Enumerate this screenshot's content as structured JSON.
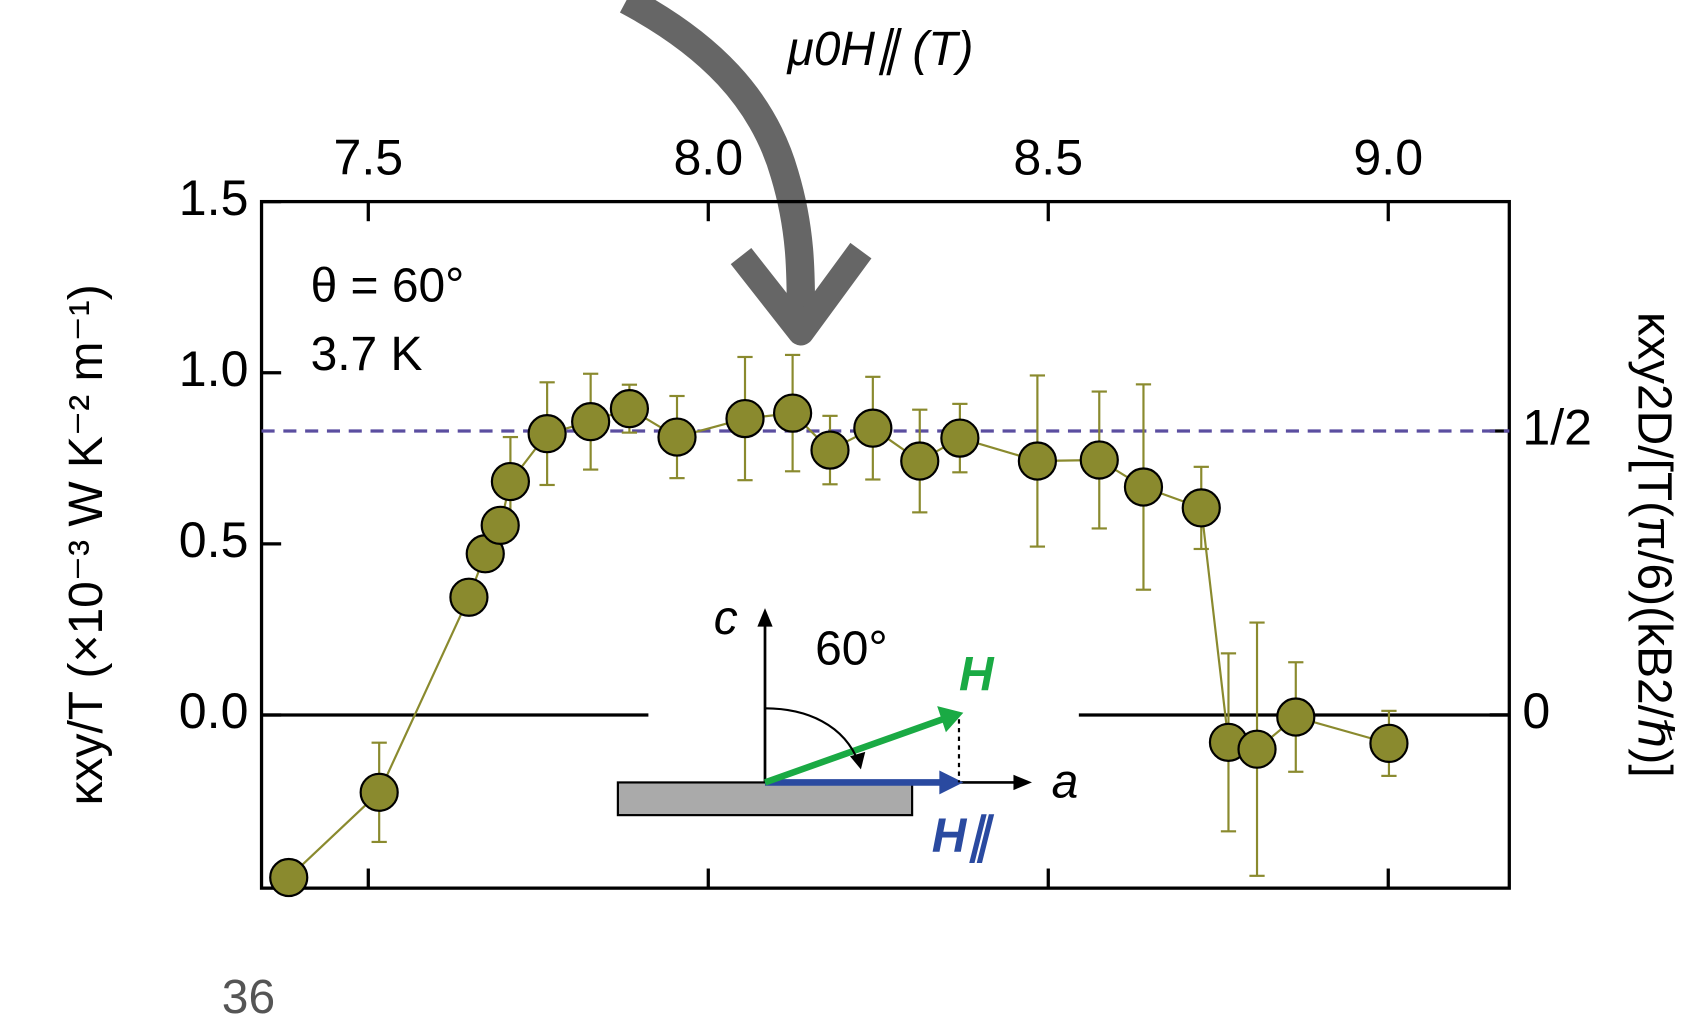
{
  "chart_data": {
    "type": "scatter",
    "x_label": "μ0H∥ (T)",
    "y_label": "κxy/T (×10⁻³ W K⁻² m⁻¹)",
    "y2_label": "κxy2D/[T(π/6)(kB2/ℏ)]",
    "annotations": [
      "θ = 60°",
      "3.7 K"
    ],
    "inset_labels": [
      "c",
      "60°",
      "H",
      "a",
      "H∥"
    ],
    "x": [
      7.383,
      7.516,
      7.648,
      7.672,
      7.694,
      7.709,
      7.763,
      7.827,
      7.884,
      7.954,
      8.054,
      8.124,
      8.179,
      8.242,
      8.311,
      8.37,
      8.484,
      8.575,
      8.64,
      8.725,
      8.765,
      8.807,
      8.864,
      9.001
    ],
    "values": [
      -0.475,
      -0.226,
      0.344,
      0.471,
      0.554,
      0.682,
      0.822,
      0.857,
      0.895,
      0.812,
      0.866,
      0.882,
      0.774,
      0.838,
      0.742,
      0.809,
      0.742,
      0.745,
      0.666,
      0.605,
      -0.08,
      -0.1,
      -0.006,
      -0.083
    ],
    "errors": [
      0,
      0.145,
      0.03,
      0.03,
      0.04,
      0.13,
      0.15,
      0.14,
      0.07,
      0.12,
      0.18,
      0.17,
      0.1,
      0.15,
      0.15,
      0.1,
      0.25,
      0.2,
      0.3,
      0.12,
      0.26,
      0.37,
      0.16,
      0.095
    ],
    "color": "#8a8a2e",
    "xlim": [
      7.343,
      9.178
    ],
    "xticks": [
      7.5,
      {
        "value": 8.0,
        "label": "8.0"
      },
      8.5,
      {
        "value": 9.0,
        "label": "9.0"
      }
    ],
    "ylim": [
      -0.506,
      1.5
    ],
    "yticks": [
      1.5,
      {
        "value": 1.0,
        "label": "1.0"
      },
      0.5,
      {
        "value": 0.0,
        "label": "0.0"
      }
    ],
    "y2lim": [
      -0.305,
      0.904
    ],
    "y2ticks": [
      0,
      {
        "value": 0.5,
        "label": "1/2"
      }
    ],
    "reference_line": {
      "axis": "y2",
      "value": 0.5,
      "color": "#5b4ea0"
    }
  },
  "page_number": "36"
}
